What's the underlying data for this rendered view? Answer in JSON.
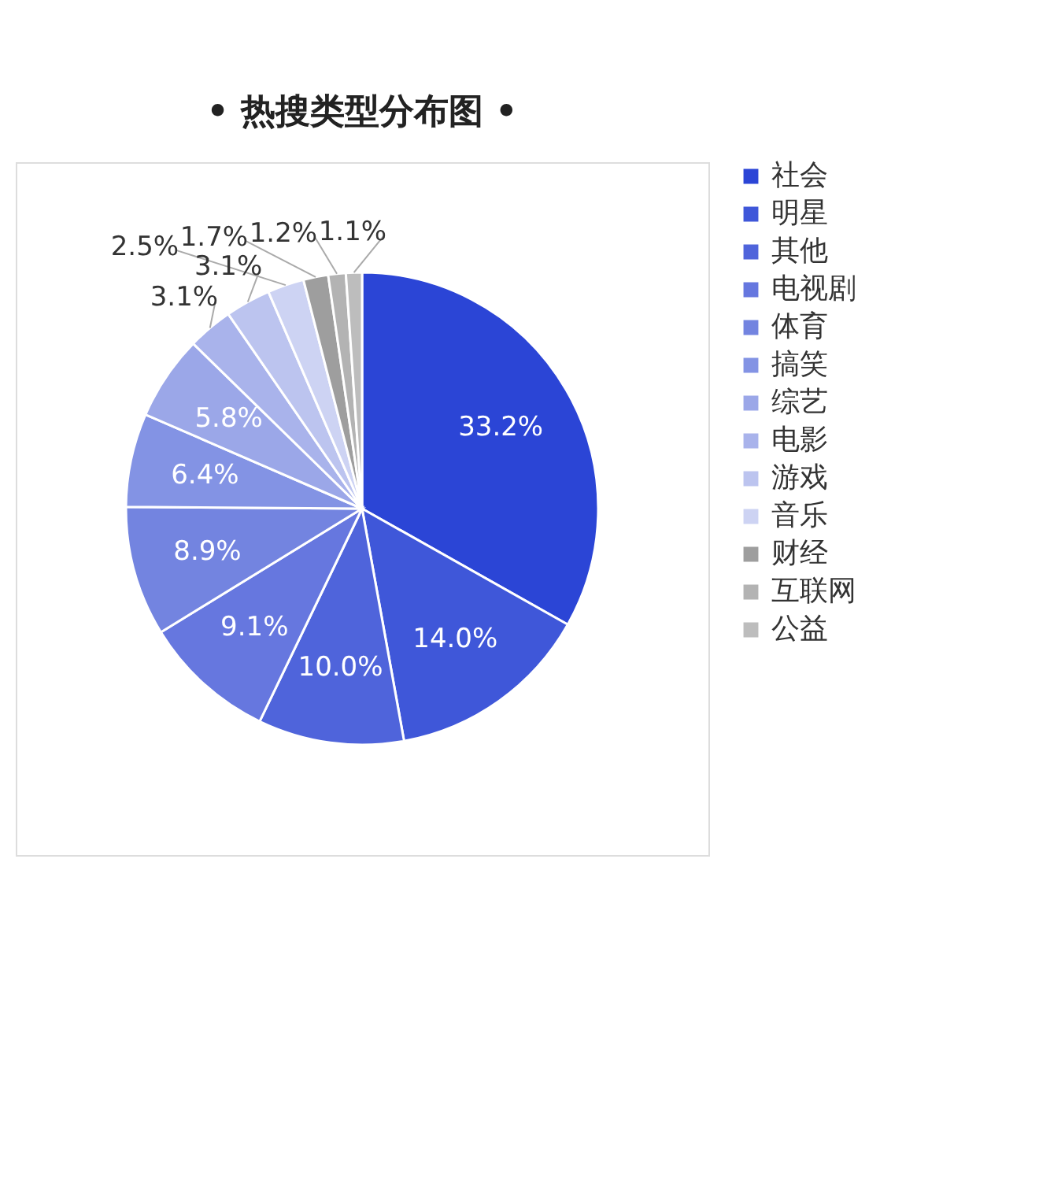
{
  "chart_data": {
    "type": "pie",
    "title": "• 热搜类型分布图 •",
    "categories": [
      "社会",
      "明星",
      "其他",
      "电视剧",
      "体育",
      "搞笑",
      "综艺",
      "电影",
      "游戏",
      "音乐",
      "财经",
      "互联网",
      "公益"
    ],
    "values": [
      33.2,
      14.0,
      10.0,
      9.1,
      8.9,
      6.4,
      5.8,
      3.1,
      3.1,
      2.5,
      1.7,
      1.2,
      1.1
    ],
    "colors": [
      "#2b45d6",
      "#3f57d9",
      "#4f64db",
      "#6677df",
      "#7384e0",
      "#8393e4",
      "#9ba7e8",
      "#a9b3eb",
      "#bcc4ef",
      "#cdd3f3",
      "#9e9e9e",
      "#b3b3b3",
      "#bdbdbd"
    ],
    "value_labels": [
      "33.2%",
      "14.0%",
      "10.0%",
      "9.1%",
      "8.9%",
      "6.4%",
      "5.8%",
      "3.1%",
      "3.1%",
      "2.5%",
      "1.7%",
      "1.2%",
      "1.1%"
    ],
    "legend": "right"
  }
}
